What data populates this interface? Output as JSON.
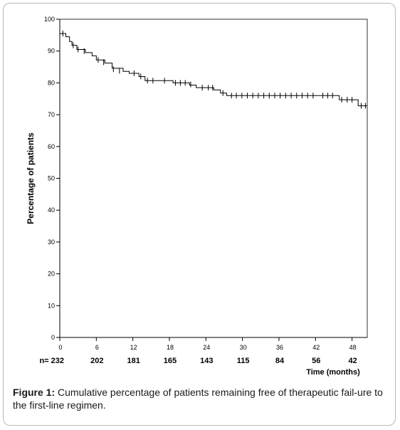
{
  "chart_data": {
    "type": "line",
    "step": true,
    "title": "",
    "ylabel": "Percentage of patients",
    "xlabel": "Time (months)",
    "xlim": [
      0,
      50.5
    ],
    "ylim": [
      0,
      100
    ],
    "x_ticks": [
      0,
      6,
      12,
      18,
      24,
      30,
      36,
      42,
      48
    ],
    "y_ticks": [
      0,
      10,
      20,
      30,
      40,
      50,
      60,
      70,
      80,
      90,
      100
    ],
    "at_risk": {
      "prefix": "n= 232",
      "values": [
        "202",
        "181",
        "165",
        "143",
        "115",
        "84",
        "56",
        "42"
      ]
    },
    "series": [
      {
        "color": "#000000",
        "step_points": [
          [
            0,
            95.5
          ],
          [
            1.0,
            94.5
          ],
          [
            1.6,
            93.0
          ],
          [
            2.0,
            91.8
          ],
          [
            2.8,
            90.5
          ],
          [
            4.2,
            89.5
          ],
          [
            5.3,
            88.5
          ],
          [
            6.0,
            87.2
          ],
          [
            7.4,
            86.2
          ],
          [
            8.6,
            84.6
          ],
          [
            10.4,
            83.6
          ],
          [
            11.4,
            83.0
          ],
          [
            13.0,
            82.0
          ],
          [
            14.0,
            80.7
          ],
          [
            18.6,
            80.0
          ],
          [
            21.3,
            79.3
          ],
          [
            22.4,
            78.5
          ],
          [
            25.3,
            77.8
          ],
          [
            26.4,
            76.8
          ],
          [
            27.4,
            76.0
          ],
          [
            45.9,
            74.7
          ],
          [
            49.0,
            72.8
          ],
          [
            50.5,
            72.8
          ]
        ],
        "censor_points": [
          [
            0.5,
            95.5
          ],
          [
            2.2,
            91.8
          ],
          [
            3.0,
            90.5
          ],
          [
            4.0,
            90.0
          ],
          [
            6.3,
            87.2
          ],
          [
            7.2,
            86.5
          ],
          [
            8.8,
            84.3
          ],
          [
            9.8,
            83.8
          ],
          [
            12.2,
            83.0
          ],
          [
            13.3,
            82.0
          ],
          [
            14.4,
            80.7
          ],
          [
            15.3,
            80.7
          ],
          [
            17.2,
            80.7
          ],
          [
            19.0,
            80.0
          ],
          [
            19.8,
            80.0
          ],
          [
            20.6,
            80.0
          ],
          [
            21.5,
            79.5
          ],
          [
            23.4,
            78.5
          ],
          [
            24.4,
            78.5
          ],
          [
            25.1,
            78.5
          ],
          [
            26.8,
            76.8
          ],
          [
            28.2,
            76.0
          ],
          [
            29.0,
            76.0
          ],
          [
            29.9,
            76.0
          ],
          [
            30.8,
            76.0
          ],
          [
            31.7,
            76.0
          ],
          [
            32.6,
            76.0
          ],
          [
            33.5,
            76.0
          ],
          [
            34.4,
            76.0
          ],
          [
            35.3,
            76.0
          ],
          [
            36.2,
            76.0
          ],
          [
            37.1,
            76.0
          ],
          [
            38.0,
            76.0
          ],
          [
            38.9,
            76.0
          ],
          [
            39.8,
            76.0
          ],
          [
            40.7,
            76.0
          ],
          [
            41.6,
            76.0
          ],
          [
            43.2,
            76.0
          ],
          [
            44.0,
            76.0
          ],
          [
            44.8,
            76.0
          ],
          [
            46.3,
            74.7
          ],
          [
            47.2,
            74.7
          ],
          [
            48.0,
            74.7
          ],
          [
            49.5,
            72.8
          ],
          [
            50.2,
            72.8
          ]
        ]
      }
    ]
  },
  "caption": {
    "label": "Figure 1:",
    "text": " Cumulative percentage of patients remaining free of therapeutic fail-ure to the first-line regimen."
  }
}
